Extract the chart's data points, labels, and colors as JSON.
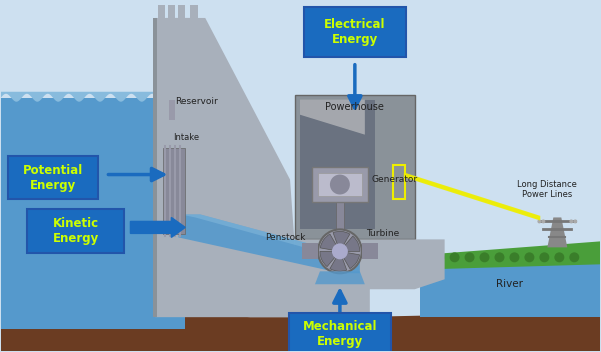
{
  "bg_color": "#cde0f0",
  "dam_color": "#a8b0bb",
  "dam_dark": "#8a9299",
  "water_color": "#5599cc",
  "water_mid": "#6faad8",
  "water_light": "#88bbdd",
  "ground_color": "#6b3c22",
  "ground_dark": "#4a2a12",
  "green_color": "#4a9e3a",
  "green_dark": "#3a7e2a",
  "label_box_color": "#1a6bbf",
  "label_text_color": "#ccff00",
  "dark_text": "#222222",
  "white_text": "#ffffff",
  "arrow_color": "#1a6bbf",
  "ph_outer": "#8a9299",
  "ph_inner_top": "#cccccc",
  "ph_inner_bot": "#444455",
  "gen_color": "#aaaaaa",
  "gen_dark": "#888888",
  "penstock_color": "#5599cc",
  "yellow_color": "#eeee00",
  "turbine_color": "#888899",
  "labels": {
    "potential_energy": "Potential\nEnergy",
    "kinetic_energy": "Kinetic\nEnergy",
    "mechanical_energy": "Mechanical\nEnergy",
    "electrical_energy": "Electrical\nEnergy",
    "reservoir": "Reservoir",
    "intake": "Intake",
    "penstock": "Penstock",
    "generator": "Generator",
    "powerhouse": "Powerhouse",
    "turbine": "Turbine",
    "river": "River",
    "power_lines": "Long Distance\nPower Lines"
  }
}
